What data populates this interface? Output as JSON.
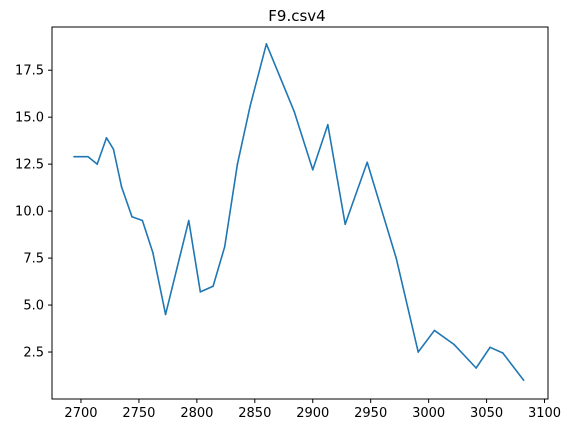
{
  "chart_data": {
    "type": "line",
    "title": "F9.csv4",
    "xlabel": "",
    "ylabel": "",
    "xlim": [
      2675,
      3103
    ],
    "ylim": [
      0.0,
      19.8
    ],
    "x_ticks": [
      2700,
      2750,
      2800,
      2850,
      2900,
      2950,
      3000,
      3050,
      3100
    ],
    "y_ticks": [
      2.5,
      5.0,
      7.5,
      10.0,
      12.5,
      15.0,
      17.5
    ],
    "x_tick_labels": [
      "2700",
      "2750",
      "2800",
      "2850",
      "2900",
      "2950",
      "3000",
      "3050",
      "3100"
    ],
    "y_tick_labels": [
      "2.5",
      "5.0",
      "7.5",
      "10.0",
      "12.5",
      "15.0",
      "17.5"
    ],
    "grid": false,
    "series": [
      {
        "color": "#1f77b4",
        "x": [
          2694,
          2706,
          2714,
          2722,
          2728,
          2735,
          2744,
          2753,
          2762,
          2773,
          2783,
          2793,
          2803,
          2814,
          2824,
          2835,
          2846,
          2860,
          2872,
          2884,
          2900,
          2913,
          2928,
          2947,
          2972,
          2991,
          3005,
          3022,
          3041,
          3053,
          3064,
          3082
        ],
        "y": [
          12.9,
          12.9,
          12.5,
          13.9,
          13.3,
          11.3,
          9.7,
          9.5,
          7.8,
          4.5,
          7.0,
          9.5,
          5.7,
          6.0,
          8.1,
          12.5,
          15.6,
          18.9,
          17.1,
          15.3,
          12.2,
          14.6,
          9.3,
          12.6,
          7.5,
          2.5,
          3.65,
          2.9,
          1.65,
          2.75,
          2.45,
          1.0
        ]
      }
    ]
  }
}
